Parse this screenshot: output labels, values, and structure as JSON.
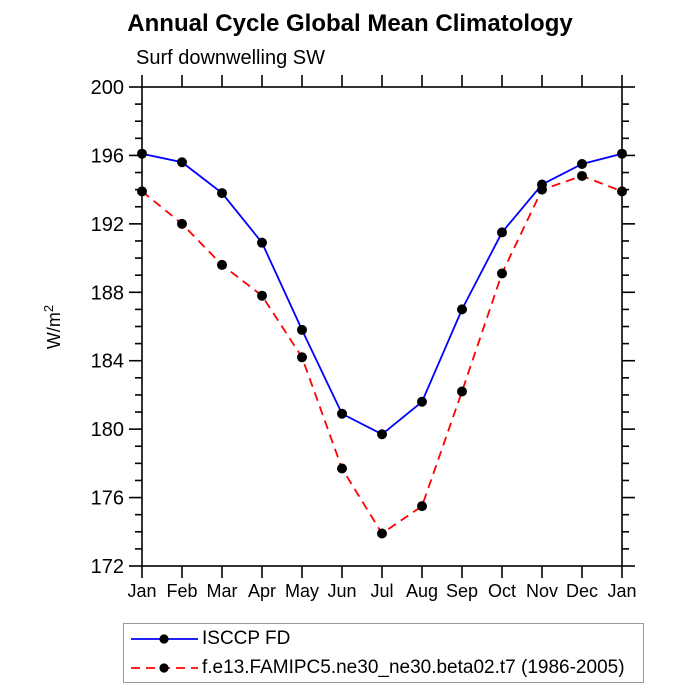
{
  "page": {
    "background": "#ffffff"
  },
  "chart_data": {
    "type": "line",
    "title": "Annual Cycle Global Mean Climatology",
    "subtitle": "Surf downwelling SW",
    "ylabel": {
      "base": "W/m",
      "exp": "2"
    },
    "x_categories": [
      "Jan",
      "Feb",
      "Mar",
      "Apr",
      "May",
      "Jun",
      "Jul",
      "Aug",
      "Sep",
      "Oct",
      "Nov",
      "Dec",
      "Jan"
    ],
    "ylim": [
      172,
      200
    ],
    "ytick_major_step": 4,
    "ytick_minor_step": 1,
    "ytick_labels": [
      "172",
      "176",
      "180",
      "184",
      "188",
      "192",
      "196",
      "200"
    ],
    "grid": "off",
    "legend_position": "bottom-left",
    "axis_color": "#000000",
    "marker_color": "#000000",
    "series": [
      {
        "name": "ISCCP FD",
        "color": "#0000ff",
        "style": "solid",
        "marker": "filled-circle",
        "values": [
          196.1,
          195.6,
          193.8,
          190.9,
          185.8,
          180.9,
          179.7,
          181.6,
          187.0,
          191.5,
          194.3,
          195.5,
          196.1
        ]
      },
      {
        "name": "f.e13.FAMIPC5.ne30_ne30.beta02.t7 (1986-2005)",
        "color": "#ff0000",
        "style": "dashed",
        "marker": "filled-circle",
        "values": [
          193.9,
          192.0,
          189.6,
          187.8,
          184.2,
          177.7,
          173.9,
          175.5,
          182.2,
          189.1,
          194.0,
          194.8,
          193.9
        ]
      }
    ]
  }
}
